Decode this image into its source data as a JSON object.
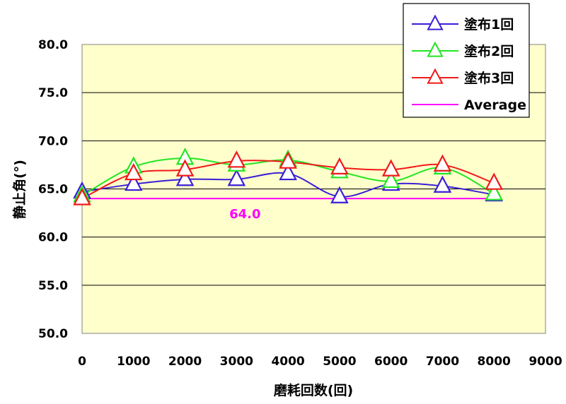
{
  "chart_data": {
    "type": "line",
    "xlabel": "磨耗回数(回)",
    "ylabel": "静止角(°)",
    "xlim": [
      0,
      9000
    ],
    "ylim": [
      50,
      80
    ],
    "x_ticks": [
      "0",
      "1000",
      "2000",
      "3000",
      "4000",
      "5000",
      "6000",
      "7000",
      "8000",
      "9000"
    ],
    "y_ticks": [
      "50.0",
      "55.0",
      "60.0",
      "65.0",
      "70.0",
      "75.0",
      "80.0"
    ],
    "grid": "horizontal",
    "background": "#FFFFCC",
    "legend_position": "top-right",
    "x": [
      0,
      1000,
      2000,
      3000,
      4000,
      5000,
      6000,
      7000,
      8000
    ],
    "series": [
      {
        "name": "塗布1回",
        "color": "#3a1fd6",
        "marker": "triangle",
        "values": [
          64.7,
          65.5,
          66.0,
          66.0,
          66.6,
          64.2,
          65.5,
          65.3,
          64.4
        ]
      },
      {
        "name": "塗布2回",
        "color": "#22e622",
        "marker": "triangle",
        "values": [
          64.3,
          67.3,
          68.2,
          67.5,
          68.0,
          66.8,
          65.8,
          67.2,
          64.5
        ]
      },
      {
        "name": "塗布3回",
        "color": "#f01a1a",
        "marker": "triangle",
        "values": [
          64.0,
          66.6,
          67.0,
          67.9,
          67.8,
          67.2,
          67.0,
          67.5,
          65.6
        ]
      },
      {
        "name": "Average",
        "color": "#ff00ff",
        "marker": "none",
        "values": [
          64.0,
          64.0,
          64.0,
          64.0,
          64.0,
          64.0,
          64.0,
          64.0,
          64.0
        ]
      }
    ],
    "annotations": [
      {
        "text": "64.0",
        "x": 3000,
        "y": 62.4,
        "color": "#ff00ff"
      }
    ]
  }
}
